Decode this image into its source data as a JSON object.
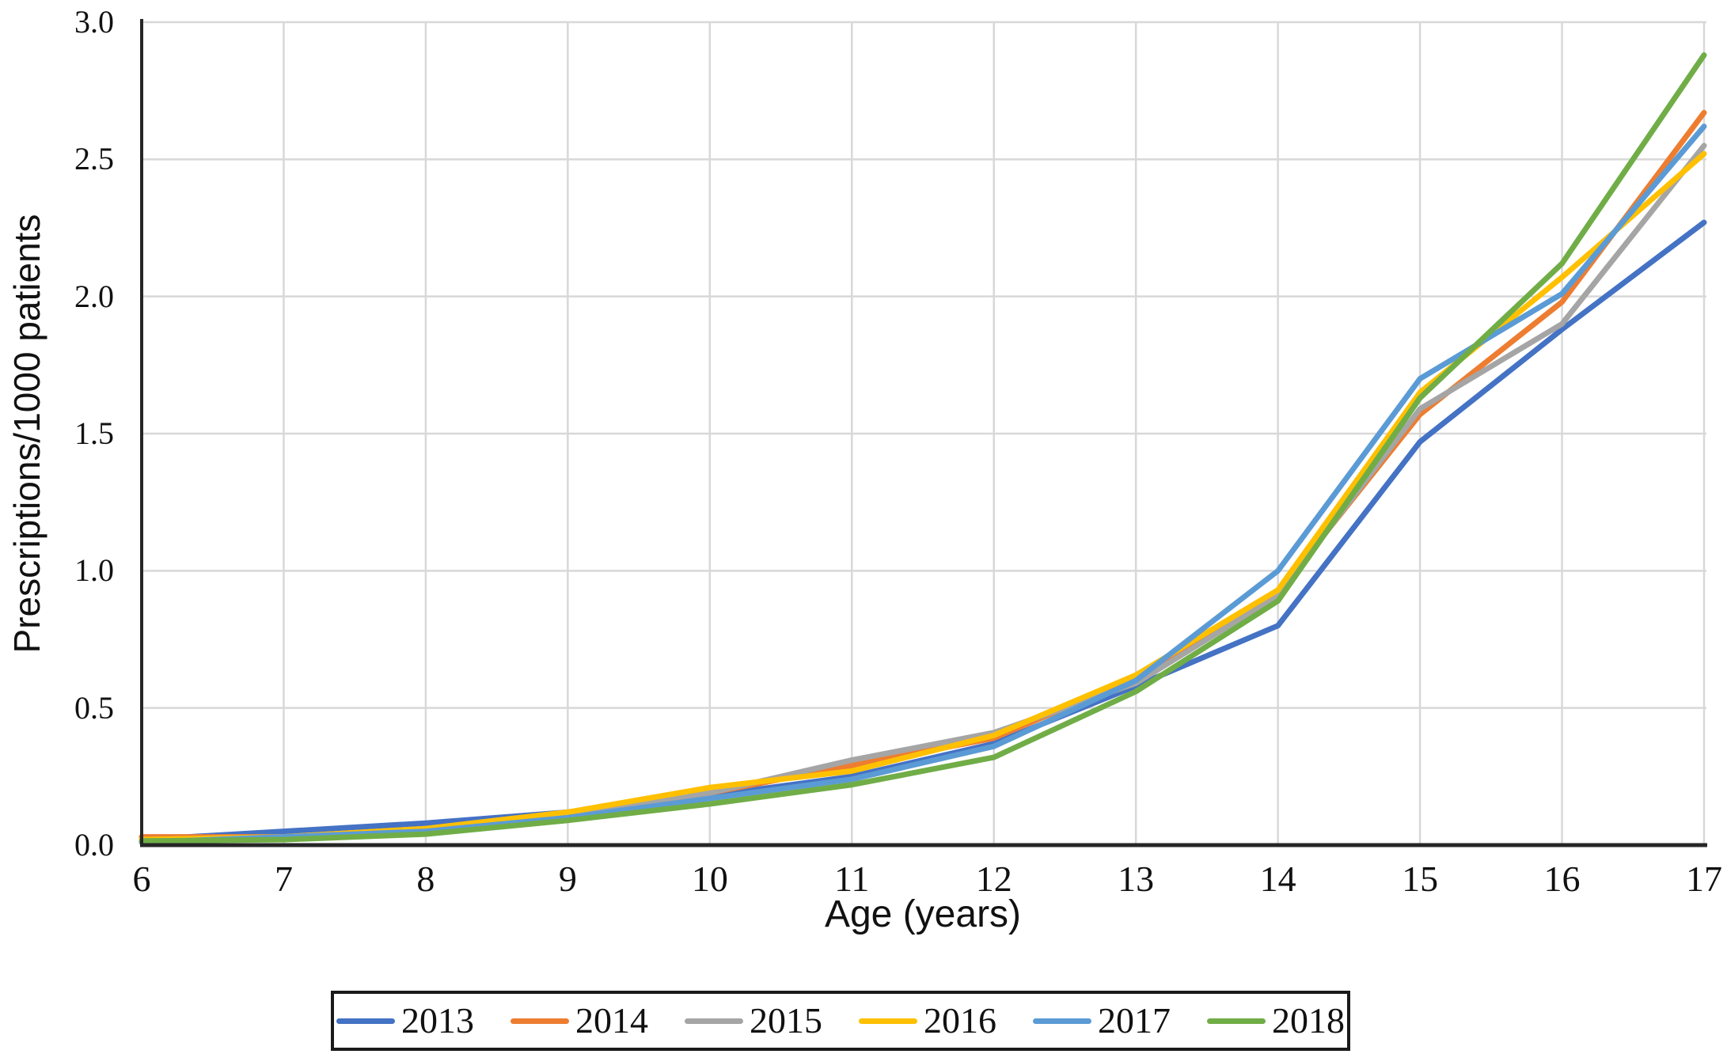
{
  "chart_data": {
    "type": "line",
    "title": "",
    "xlabel": "Age (years)",
    "ylabel": "Prescriptions/1000 patients",
    "x": [
      6,
      7,
      8,
      9,
      10,
      11,
      12,
      13,
      14,
      15,
      16,
      17
    ],
    "x_ticks": [
      "6",
      "7",
      "8",
      "9",
      "10",
      "11",
      "12",
      "13",
      "14",
      "15",
      "16",
      "17"
    ],
    "y_ticks": [
      "0.0",
      "0.5",
      "1.0",
      "1.5",
      "2.0",
      "2.5",
      "3.0"
    ],
    "xlim": [
      6,
      17
    ],
    "ylim": [
      0,
      3.0
    ],
    "grid": true,
    "legend_position": "bottom",
    "colors": {
      "gridline": "#d8d8d8",
      "axis": "#262626",
      "text": "#111111"
    },
    "series": [
      {
        "name": "2013",
        "color": "#4472C4",
        "values": [
          0.02,
          0.05,
          0.08,
          0.12,
          0.18,
          0.25,
          0.37,
          0.58,
          0.8,
          1.47,
          1.88,
          2.27
        ]
      },
      {
        "name": "2014",
        "color": "#ED7D31",
        "values": [
          0.03,
          0.03,
          0.06,
          0.12,
          0.19,
          0.29,
          0.39,
          0.61,
          0.92,
          1.57,
          1.98,
          2.67
        ]
      },
      {
        "name": "2015",
        "color": "#A5A5A5",
        "values": [
          0.02,
          0.03,
          0.06,
          0.12,
          0.19,
          0.31,
          0.41,
          0.59,
          0.91,
          1.59,
          1.9,
          2.55
        ]
      },
      {
        "name": "2016",
        "color": "#FFC000",
        "values": [
          0.02,
          0.03,
          0.06,
          0.12,
          0.21,
          0.27,
          0.4,
          0.62,
          0.93,
          1.65,
          2.07,
          2.52
        ]
      },
      {
        "name": "2017",
        "color": "#5B9BD5",
        "values": [
          0.01,
          0.03,
          0.05,
          0.1,
          0.17,
          0.24,
          0.36,
          0.6,
          1.0,
          1.7,
          2.01,
          2.62
        ]
      },
      {
        "name": "2018",
        "color": "#70AD47",
        "values": [
          0.015,
          0.02,
          0.04,
          0.09,
          0.15,
          0.22,
          0.32,
          0.56,
          0.89,
          1.63,
          2.12,
          2.88
        ]
      }
    ]
  }
}
